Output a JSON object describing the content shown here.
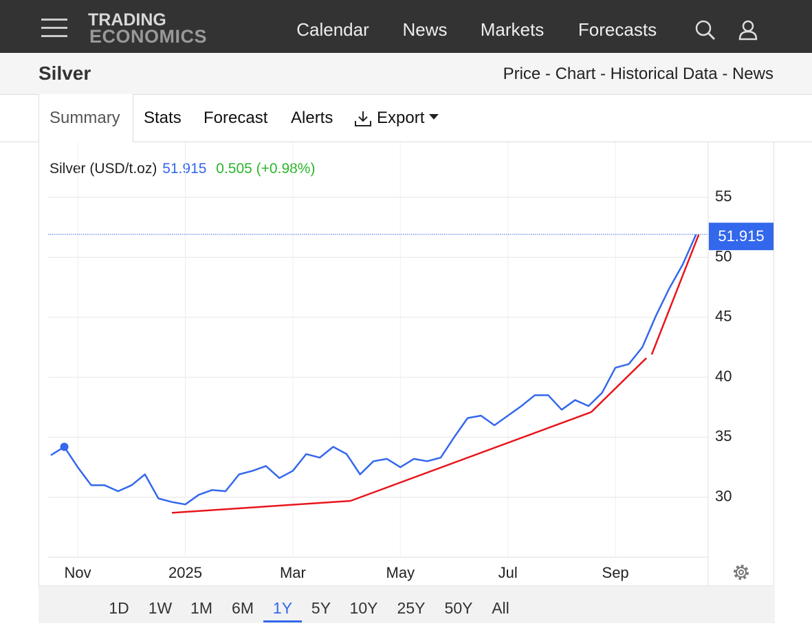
{
  "nav": {
    "logo_top": "TRADING",
    "logo_bottom": "ECONOMICS",
    "links": [
      "Calendar",
      "News",
      "Markets",
      "Forecasts"
    ]
  },
  "header": {
    "title": "Silver",
    "links": "Price - Chart - Historical Data - News"
  },
  "tabs": [
    "Summary",
    "Stats",
    "Forecast",
    "Alerts",
    "Export"
  ],
  "quote": {
    "name": "Silver (USD/t.oz)",
    "change": "0.505 (+0.98%)"
  },
  "chart_data": {
    "type": "line",
    "categories": [
      null,
      null,
      "Nov",
      null,
      null,
      null,
      null,
      null,
      null,
      null,
      "2025",
      null,
      null,
      null,
      null,
      null,
      null,
      null,
      "Mar",
      null,
      null,
      null,
      null,
      null,
      null,
      null,
      "May",
      null,
      null,
      null,
      null,
      null,
      null,
      null,
      "Jul",
      null,
      null,
      null,
      null,
      null,
      null,
      null,
      "Sep",
      null,
      null,
      null,
      null,
      null,
      null
    ],
    "series": [
      {
        "name": "Silver (USD/t.oz)",
        "color": "#3367ec",
        "values": [
          33.5,
          34.2,
          32.5,
          31.0,
          31.0,
          30.5,
          31.0,
          31.9,
          29.9,
          29.6,
          29.4,
          30.2,
          30.6,
          30.5,
          31.9,
          32.2,
          32.6,
          31.6,
          32.2,
          33.6,
          33.3,
          34.2,
          33.6,
          31.9,
          33.0,
          33.2,
          32.5,
          33.2,
          33.0,
          33.3,
          35.0,
          36.6,
          36.8,
          36.0,
          36.8,
          37.6,
          38.5,
          38.5,
          37.3,
          38.1,
          37.6,
          38.7,
          40.8,
          41.1,
          42.5,
          45.1,
          47.4,
          49.4,
          51.915
        ]
      }
    ],
    "trendlines": [
      {
        "color": "#e8141b",
        "x": [
          9,
          22.3
        ],
        "values": [
          28.7,
          29.7
        ]
      },
      {
        "color": "#e8141b",
        "x": [
          22.3,
          40.2
        ],
        "values": [
          29.7,
          37.1
        ]
      },
      {
        "color": "#e8141b",
        "x": [
          40.2,
          44.3
        ],
        "values": [
          37.1,
          41.6
        ]
      },
      {
        "color": "#e8141b",
        "x": [
          44.7,
          48.2
        ],
        "values": [
          41.9,
          51.9
        ]
      }
    ],
    "ylim": [
      25,
      59.6
    ],
    "yticks": [
      30,
      35,
      40,
      45,
      50,
      55
    ],
    "grid": true
  },
  "ranges": [
    "1D",
    "1W",
    "1M",
    "6M",
    "1Y",
    "5Y",
    "10Y",
    "25Y",
    "50Y",
    "All"
  ]
}
